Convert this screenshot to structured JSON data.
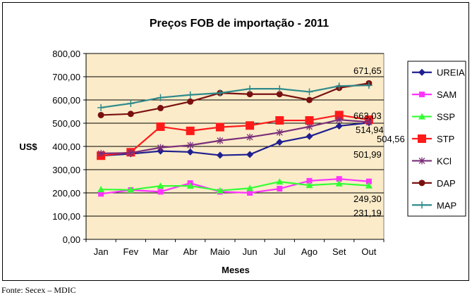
{
  "source_note": "Fonte: Secex – MDIC",
  "chart_data": {
    "type": "line",
    "title": "Preços FOB de importação - 2011",
    "xlabel": "Meses",
    "ylabel": "US$",
    "ylim": [
      0,
      800
    ],
    "yticks": [
      "0,00",
      "100,00",
      "200,00",
      "300,00",
      "400,00",
      "500,00",
      "600,00",
      "700,00",
      "800,00"
    ],
    "categories": [
      "Jan",
      "Fev",
      "Mar",
      "Abr",
      "Maio",
      "Jun",
      "Jul",
      "Ago",
      "Set",
      "Out"
    ],
    "grid": true,
    "legend_position": "right",
    "plot_background": "#fbebc9",
    "series": [
      {
        "name": "UREIA",
        "color": "#1f1f8f",
        "marker": "diamond",
        "values": [
          360,
          368,
          380,
          376,
          362,
          365,
          418,
          443,
          488,
          501.99
        ]
      },
      {
        "name": "SAM",
        "color": "#ff33ff",
        "marker": "square",
        "values": [
          196,
          212,
          205,
          242,
          205,
          200,
          218,
          252,
          260,
          249.3
        ]
      },
      {
        "name": "SSP",
        "color": "#33ff33",
        "marker": "triangle",
        "values": [
          215,
          213,
          230,
          230,
          210,
          220,
          248,
          233,
          240,
          231.19
        ]
      },
      {
        "name": "STP",
        "color": "#ff1a1a",
        "marker": "bigsquare",
        "values": [
          360,
          375,
          485,
          467,
          483,
          490,
          512,
          512,
          535,
          514.94
        ]
      },
      {
        "name": "KCl",
        "color": "#7a2e7a",
        "marker": "star",
        "values": [
          370,
          372,
          395,
          405,
          425,
          440,
          460,
          485,
          515,
          504.56
        ]
      },
      {
        "name": "DAP",
        "color": "#7a1010",
        "marker": "circle",
        "values": [
          535,
          540,
          565,
          593,
          630,
          625,
          625,
          600,
          652,
          671.65
        ]
      },
      {
        "name": "MAP",
        "color": "#2e8b8b",
        "marker": "plus",
        "values": [
          567,
          585,
          610,
          622,
          630,
          648,
          648,
          635,
          660,
          663.03
        ]
      }
    ],
    "data_labels": [
      "671,65",
      "663,03",
      "514,94",
      "504,56",
      "501,99",
      "249,30",
      "231,19"
    ]
  }
}
